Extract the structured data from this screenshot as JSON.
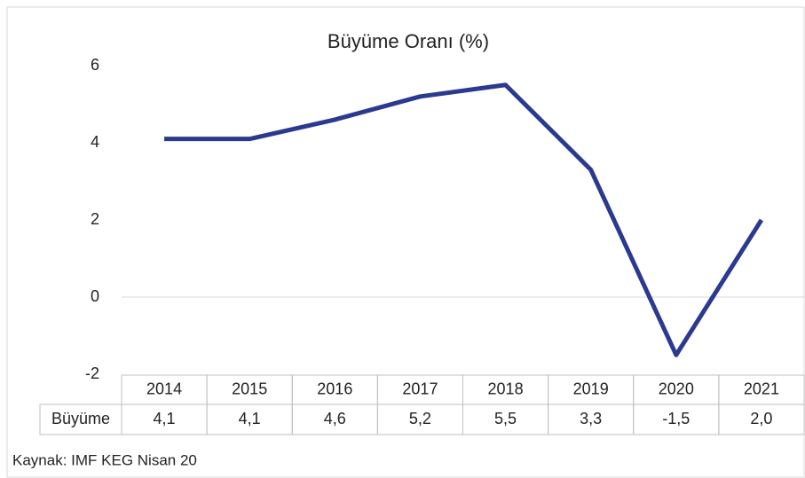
{
  "chart_data": {
    "type": "line",
    "title": "Büyüme Oranı (%)",
    "categories": [
      "2014",
      "2015",
      "2016",
      "2017",
      "2018",
      "2019",
      "2020",
      "2021"
    ],
    "series": [
      {
        "name": "Büyüme",
        "color": "#2b3990",
        "values": [
          4.1,
          4.1,
          4.6,
          5.2,
          5.5,
          3.3,
          -1.5,
          2.0
        ],
        "value_labels": [
          "4,1",
          "4,1",
          "4,6",
          "5,2",
          "5,5",
          "3,3",
          "-1,5",
          "2,0"
        ]
      }
    ],
    "ylim": [
      -2,
      6
    ],
    "yticks": [
      -2,
      0,
      2,
      4,
      6
    ],
    "grid": false,
    "source": "Kaynak: IMF KEG Nisan 20"
  }
}
